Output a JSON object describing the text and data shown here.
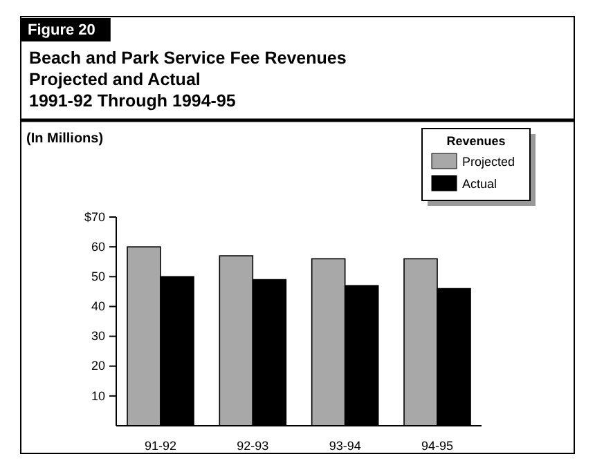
{
  "chart_data": {
    "type": "bar",
    "title": "Beach and Park Service Fee Revenues\nProjected and Actual\n1991-92 Through 1994-95",
    "ylabel": "(In Millions)",
    "legend_title": "Revenues",
    "annotations": [
      "Figure 20"
    ],
    "categories": [
      "91-92",
      "92-93",
      "93-94",
      "94-95"
    ],
    "series": [
      {
        "name": "Projected",
        "color": "#a8a8a8",
        "values": [
          60,
          57,
          56,
          56
        ]
      },
      {
        "name": "Actual",
        "color": "#000000",
        "values": [
          50,
          49,
          47,
          46
        ]
      }
    ],
    "ylim": [
      0,
      70
    ],
    "yticks": [
      {
        "value": 70,
        "label": "$70"
      },
      60,
      50,
      40,
      30,
      20,
      10
    ],
    "grid": false,
    "legend": "top right"
  }
}
